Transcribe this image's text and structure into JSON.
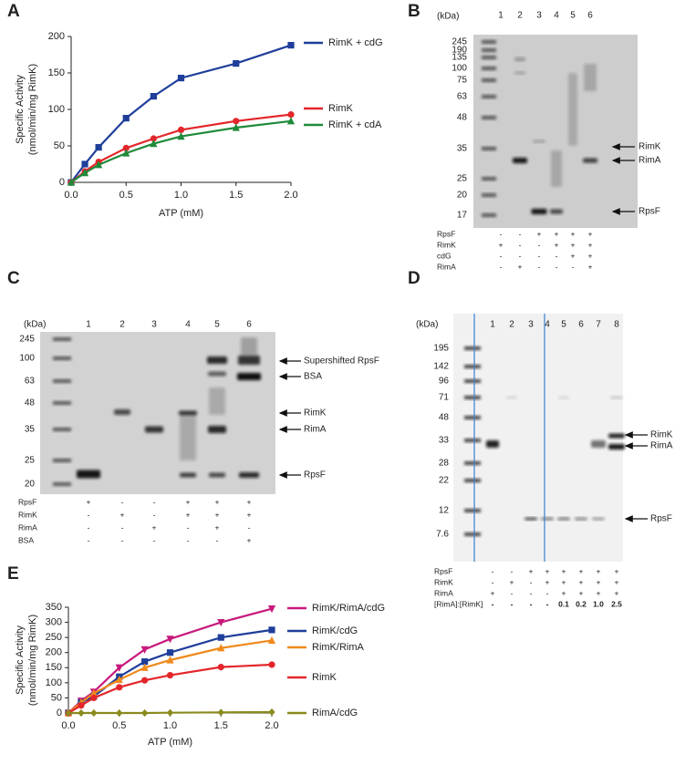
{
  "chart_data": [
    {
      "type": "line",
      "panel": "A",
      "ylabel": [
        "Specific Activity",
        "(nmol/min/mg RimK)"
      ],
      "xlabel": "ATP (mM)",
      "x": [
        0,
        0.125,
        0.25,
        0.5,
        0.75,
        1,
        1.5,
        2
      ],
      "xlim": [
        0,
        2
      ],
      "ylim": [
        0,
        200
      ],
      "xticks": [
        {
          "value": 0,
          "label": "0.0"
        },
        {
          "value": 0.5,
          "label": "0.5"
        },
        {
          "value": 1,
          "label": "1.0"
        },
        {
          "value": 1.5,
          "label": "1.5"
        },
        {
          "value": 2,
          "label": "2.0"
        }
      ],
      "yticks": [
        0,
        50,
        100,
        150,
        200
      ],
      "series": [
        {
          "name": "RimK + cdG",
          "color": "#1f3e9a",
          "marker": "square",
          "values": [
            0,
            25,
            48,
            88,
            118,
            143,
            163,
            188
          ]
        },
        {
          "name": "RimK",
          "color": "#e3262b",
          "marker": "circle",
          "values": [
            0,
            15,
            28,
            47,
            60,
            72,
            84,
            93
          ]
        },
        {
          "name": "RimK + cdA",
          "color": "#1f8a3a",
          "marker": "triangle",
          "values": [
            0,
            13,
            24,
            40,
            53,
            63,
            75,
            84
          ]
        }
      ]
    },
    {
      "type": "line",
      "panel": "E",
      "ylabel": [
        "Specific Activity",
        "(nmol/min/mg RimK)"
      ],
      "xlabel": "ATP (mM)",
      "x": [
        0,
        0.125,
        0.25,
        0.5,
        0.75,
        1,
        1.5,
        2
      ],
      "xlim": [
        0,
        2
      ],
      "ylim": [
        0,
        350
      ],
      "xticks": [
        {
          "value": 0,
          "label": "0.0"
        },
        {
          "value": 0.5,
          "label": "0.5"
        },
        {
          "value": 1,
          "label": "1.0"
        },
        {
          "value": 1.5,
          "label": "1.5"
        },
        {
          "value": 2,
          "label": "2.0"
        }
      ],
      "yticks": [
        0,
        50,
        100,
        150,
        200,
        250,
        300,
        350
      ],
      "series": [
        {
          "name": "RimK/RimA/cdG",
          "color": "#c8197c",
          "marker": "invtriangle",
          "values": [
            0,
            40,
            70,
            150,
            210,
            245,
            300,
            345
          ]
        },
        {
          "name": "RimK/cdG",
          "color": "#1f3e9a",
          "marker": "square",
          "values": [
            0,
            35,
            55,
            120,
            170,
            200,
            250,
            275
          ]
        },
        {
          "name": "RimK/RimA",
          "color": "#f08a1c",
          "marker": "triangle",
          "values": [
            0,
            35,
            65,
            110,
            150,
            175,
            215,
            240
          ]
        },
        {
          "name": "RimK",
          "color": "#e3262b",
          "marker": "circle",
          "values": [
            0,
            25,
            50,
            85,
            108,
            125,
            152,
            160
          ]
        },
        {
          "name": "RimA/cdG",
          "color": "#8a8a1e",
          "marker": "diamond",
          "values": [
            0,
            0,
            0,
            0,
            0,
            1,
            2,
            3
          ]
        }
      ]
    }
  ],
  "gels": [
    {
      "panel": "B",
      "unit": "(kDa)",
      "lanes": [
        "1",
        "2",
        "3",
        "4",
        "5",
        "6"
      ],
      "markers": [
        "245",
        "190",
        "135",
        "100",
        "75",
        "63",
        "48",
        "35",
        "25",
        "20",
        "17"
      ],
      "bands": [
        "RimK",
        "RimA",
        "RpsF"
      ],
      "conditions": [
        {
          "name": "RpsF",
          "values": [
            "-",
            "-",
            "+",
            "+",
            "+",
            "+"
          ]
        },
        {
          "name": "RimK",
          "values": [
            "+",
            "-",
            "-",
            "+",
            "+",
            "+"
          ]
        },
        {
          "name": "cdG",
          "values": [
            "-",
            "-",
            "-",
            "-",
            "+",
            "+"
          ]
        },
        {
          "name": "RimA",
          "values": [
            "-",
            "+",
            "-",
            "-",
            "-",
            "+"
          ]
        }
      ]
    },
    {
      "panel": "C",
      "unit": "(kDa)",
      "lanes": [
        "1",
        "2",
        "3",
        "4",
        "5",
        "6"
      ],
      "markers": [
        "245",
        "100",
        "63",
        "48",
        "35",
        "25",
        "20"
      ],
      "bands": [
        "Supershifted RpsF",
        "BSA",
        "RimK",
        "RimA",
        "RpsF"
      ],
      "conditions": [
        {
          "name": "RpsF",
          "values": [
            "+",
            "-",
            "-",
            "+",
            "+",
            "+"
          ]
        },
        {
          "name": "RimK",
          "values": [
            "-",
            "+",
            "-",
            "+",
            "+",
            "+"
          ]
        },
        {
          "name": "RimA",
          "values": [
            "-",
            "-",
            "+",
            "-",
            "+",
            "-"
          ]
        },
        {
          "name": "BSA",
          "values": [
            "-",
            "-",
            "-",
            "-",
            "-",
            "+"
          ]
        }
      ]
    },
    {
      "panel": "D",
      "unit": "(kDa)",
      "lanes": [
        "1",
        "2",
        "3",
        "4",
        "5",
        "6",
        "7",
        "8"
      ],
      "markers": [
        "195",
        "142",
        "96",
        "71",
        "48",
        "33",
        "28",
        "22",
        "12",
        "7.6"
      ],
      "bands": [
        "RimK",
        "RimA",
        "RpsF"
      ],
      "conditions": [
        {
          "name": "RpsF",
          "values": [
            "-",
            "-",
            "+",
            "+",
            "+",
            "+",
            "+",
            "+"
          ]
        },
        {
          "name": "RimK",
          "values": [
            "-",
            "+",
            "-",
            "+",
            "+",
            "+",
            "+",
            "+"
          ]
        },
        {
          "name": "RimA",
          "values": [
            "+",
            "-",
            "-",
            "-",
            "+",
            "+",
            "+",
            "+"
          ]
        },
        {
          "name": "[RimA]:[RimK]",
          "values": [
            "-",
            "-",
            "-",
            "-",
            "0.1",
            "0.2",
            "1.0",
            "2.5"
          ]
        }
      ]
    }
  ]
}
